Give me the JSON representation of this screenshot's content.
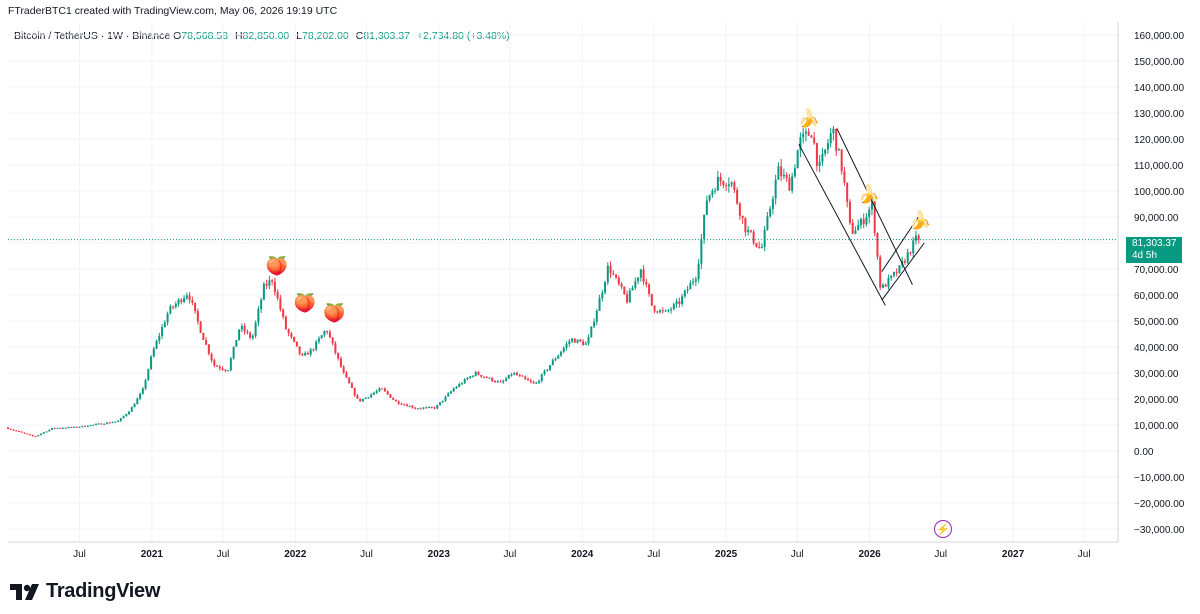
{
  "header": {
    "attribution": "FTraderBTC1 created with TradingView.com, May 06, 2026 19:19 UTC"
  },
  "legend": {
    "symbol": "Bitcoin / TetherUS · 1W · Binance",
    "o_label": "O",
    "o_value": "78,568.58",
    "h_label": "H",
    "h_value": "82,850.00",
    "l_label": "L",
    "l_value": "78,202.00",
    "c_label": "C",
    "c_value": "81,303.37",
    "change": "+2,734.80 (+3.48%)"
  },
  "price_tag": {
    "price": "81,303.37",
    "countdown": "4d 5h"
  },
  "brand": {
    "name": "TradingView",
    "icon": "tradingview-logo-icon"
  },
  "colors": {
    "up": "#089981",
    "down": "#f23645",
    "grid": "#f0f3fa",
    "price_line": "#089981"
  },
  "annotations": {
    "peach_markers": [
      "🍑",
      "🍑",
      "🍑"
    ],
    "banana_markers": [
      "🍌",
      "🍌",
      "🍌"
    ],
    "bolt_icon": "⚡"
  },
  "chart_data": {
    "type": "candlestick",
    "title": "Bitcoin / TetherUS · 1W · Binance",
    "y_range": [
      -35000,
      165000
    ],
    "y_ticks": [
      160000,
      150000,
      140000,
      130000,
      120000,
      110000,
      100000,
      90000,
      80000,
      70000,
      60000,
      50000,
      40000,
      30000,
      20000,
      10000,
      0,
      -10000,
      -20000,
      -30000
    ],
    "y_tick_labels": [
      "160,000.00",
      "150,000.00",
      "140,000.00",
      "130,000.00",
      "120,000.00",
      "110,000.00",
      "100,000.00",
      "90,000.00",
      "80,000.00",
      "70,000.00",
      "60,000.00",
      "50,000.00",
      "40,000.00",
      "30,000.00",
      "20,000.00",
      "10,000.00",
      "0.00",
      "−10,000.00",
      "−20,000.00",
      "−30,000.00"
    ],
    "x_ticks": [
      {
        "label": "Jul",
        "date": "2020-07-01",
        "bold": false
      },
      {
        "label": "2021",
        "date": "2021-01-01",
        "bold": true
      },
      {
        "label": "Jul",
        "date": "2021-07-01",
        "bold": false
      },
      {
        "label": "2022",
        "date": "2022-01-01",
        "bold": true
      },
      {
        "label": "Jul",
        "date": "2022-07-01",
        "bold": false
      },
      {
        "label": "2023",
        "date": "2023-01-01",
        "bold": true
      },
      {
        "label": "Jul",
        "date": "2023-07-01",
        "bold": false
      },
      {
        "label": "2024",
        "date": "2024-01-01",
        "bold": true
      },
      {
        "label": "Jul",
        "date": "2024-07-01",
        "bold": false
      },
      {
        "label": "2025",
        "date": "2025-01-01",
        "bold": true
      },
      {
        "label": "Jul",
        "date": "2025-07-01",
        "bold": false
      },
      {
        "label": "2026",
        "date": "2026-01-01",
        "bold": true
      },
      {
        "label": "Jul",
        "date": "2026-07-01",
        "bold": false
      },
      {
        "label": "2027",
        "date": "2027-01-01",
        "bold": true
      },
      {
        "label": "Jul",
        "date": "2027-07-01",
        "bold": false
      }
    ],
    "last_price": 81303.37,
    "price_path": [
      [
        "2020-01-01",
        9000
      ],
      [
        "2020-03-15",
        5500
      ],
      [
        "2020-05-01",
        8800
      ],
      [
        "2020-07-01",
        9200
      ],
      [
        "2020-09-01",
        10500
      ],
      [
        "2020-10-15",
        11500
      ],
      [
        "2020-11-15",
        16000
      ],
      [
        "2020-12-15",
        23000
      ],
      [
        "2021-01-10",
        38000
      ],
      [
        "2021-02-20",
        54000
      ],
      [
        "2021-04-10",
        61000
      ],
      [
        "2021-05-15",
        45000
      ],
      [
        "2021-06-15",
        33000
      ],
      [
        "2021-07-20",
        31000
      ],
      [
        "2021-08-20",
        48000
      ],
      [
        "2021-09-20",
        43000
      ],
      [
        "2021-10-20",
        63000
      ],
      [
        "2021-11-10",
        66000
      ],
      [
        "2021-12-15",
        47000
      ],
      [
        "2022-01-25",
        36000
      ],
      [
        "2022-02-20",
        39000
      ],
      [
        "2022-03-28",
        47000
      ],
      [
        "2022-05-10",
        30000
      ],
      [
        "2022-06-18",
        19000
      ],
      [
        "2022-08-15",
        24000
      ],
      [
        "2022-09-20",
        19000
      ],
      [
        "2022-11-10",
        16500
      ],
      [
        "2022-12-30",
        16600
      ],
      [
        "2023-02-15",
        24000
      ],
      [
        "2023-04-10",
        30000
      ],
      [
        "2023-06-15",
        26000
      ],
      [
        "2023-07-15",
        30000
      ],
      [
        "2023-09-10",
        25500
      ],
      [
        "2023-10-25",
        34500
      ],
      [
        "2023-12-10",
        43000
      ],
      [
        "2024-01-20",
        41000
      ],
      [
        "2024-02-28",
        62000
      ],
      [
        "2024-03-14",
        71000
      ],
      [
        "2024-05-01",
        58000
      ],
      [
        "2024-06-05",
        70000
      ],
      [
        "2024-07-05",
        55000
      ],
      [
        "2024-08-05",
        53000
      ],
      [
        "2024-09-10",
        57000
      ],
      [
        "2024-10-25",
        68000
      ],
      [
        "2024-11-20",
        97000
      ],
      [
        "2024-12-17",
        104000
      ],
      [
        "2025-01-20",
        104000
      ],
      [
        "2025-02-25",
        86000
      ],
      [
        "2025-04-07",
        77000
      ],
      [
        "2025-05-20",
        108000
      ],
      [
        "2025-06-20",
        102000
      ],
      [
        "2025-07-14",
        119000
      ],
      [
        "2025-08-14",
        123000
      ],
      [
        "2025-09-01",
        108000
      ],
      [
        "2025-10-06",
        124000
      ],
      [
        "2025-11-01",
        107000
      ],
      [
        "2025-11-21",
        84000
      ],
      [
        "2025-12-20",
        88000
      ],
      [
        "2026-01-15",
        95000
      ],
      [
        "2026-02-05",
        62000
      ],
      [
        "2026-03-01",
        66000
      ],
      [
        "2026-03-25",
        70000
      ],
      [
        "2026-04-20",
        77000
      ],
      [
        "2026-05-06",
        81303
      ]
    ],
    "channel_lines": [
      {
        "from": [
          "2025-07-05",
          118000
        ],
        "to": [
          "2026-02-10",
          56000
        ]
      },
      {
        "from": [
          "2025-10-10",
          124000
        ],
        "to": [
          "2026-04-20",
          64000
        ]
      },
      {
        "from": [
          "2026-02-01",
          58000
        ],
        "to": [
          "2026-05-20",
          80000
        ]
      },
      {
        "from": [
          "2026-02-01",
          69000
        ],
        "to": [
          "2026-05-05",
          90000
        ]
      }
    ],
    "markers": [
      {
        "symbol": "peach",
        "date": "2021-11-10",
        "price": 71000
      },
      {
        "symbol": "peach",
        "date": "2022-01-20",
        "price": 57000
      },
      {
        "symbol": "peach",
        "date": "2022-04-05",
        "price": 53000
      },
      {
        "symbol": "banana",
        "date": "2025-07-25",
        "price": 128000
      },
      {
        "symbol": "banana",
        "date": "2025-12-25",
        "price": 99000
      },
      {
        "symbol": "banana",
        "date": "2026-05-05",
        "price": 89000
      }
    ]
  }
}
